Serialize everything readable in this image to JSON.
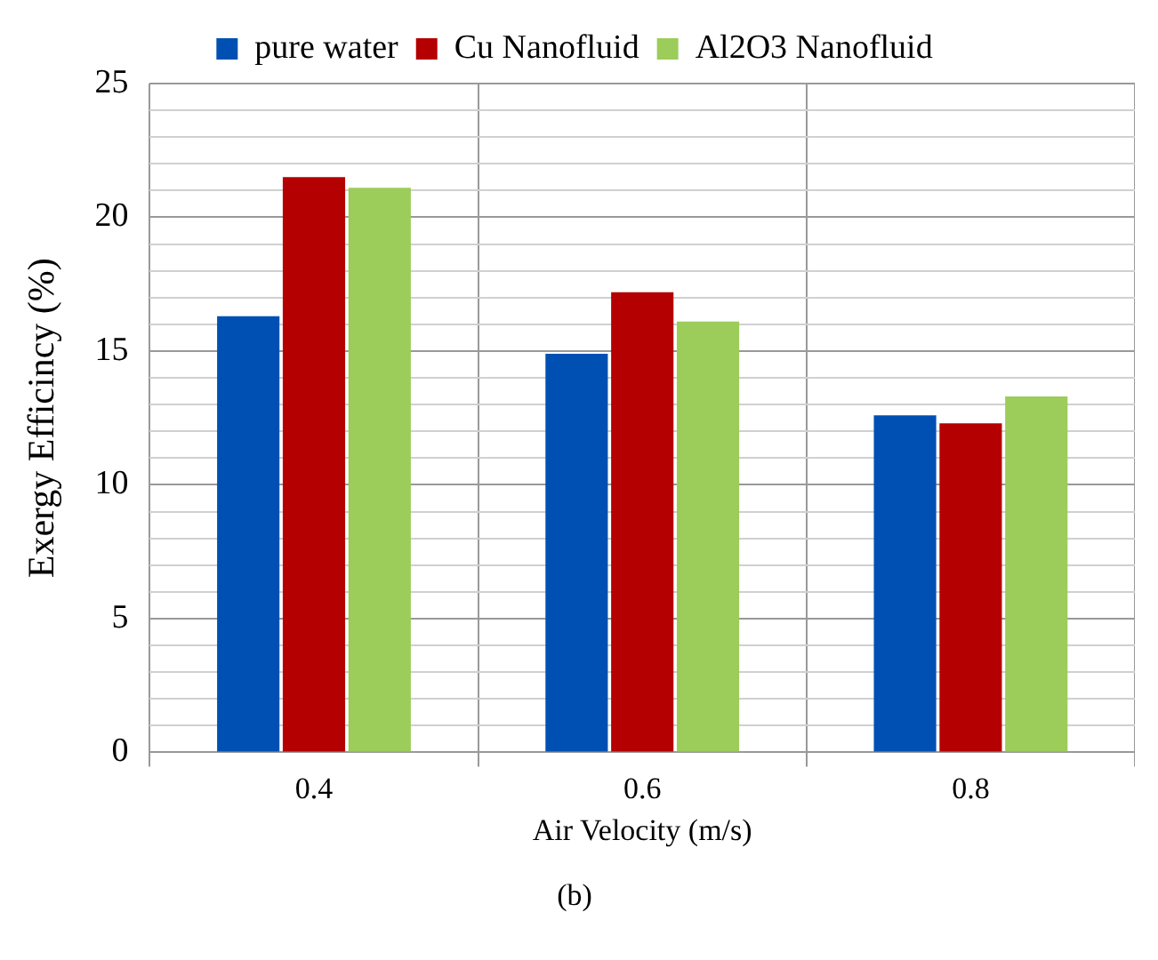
{
  "chart_data": {
    "type": "bar",
    "xlabel": "Air Velocity (m/s)",
    "ylabel": "Exergy Efficincy (%)",
    "categories": [
      "0.4",
      "0.6",
      "0.8"
    ],
    "series": [
      {
        "name": "pure water",
        "color": "#0050b4",
        "values": [
          16.3,
          14.9,
          12.6
        ]
      },
      {
        "name": "Cu Nanofluid",
        "color": "#b40000",
        "values": [
          21.5,
          17.2,
          12.3
        ]
      },
      {
        "name": "Al2O3 Nanofluid",
        "color": "#9ccc5a",
        "values": [
          21.1,
          16.1,
          13.3
        ]
      }
    ],
    "ylim": [
      0,
      25
    ],
    "yticks": [
      0,
      {
        "value": 1,
        "label": null
      },
      {
        "value": 2,
        "label": null
      },
      {
        "value": 3,
        "label": null
      },
      {
        "value": 4,
        "label": null
      },
      5,
      {
        "value": 6,
        "label": null
      },
      {
        "value": 7,
        "label": null
      },
      {
        "value": 8,
        "label": null
      },
      {
        "value": 9,
        "label": null
      },
      10,
      {
        "value": 11,
        "label": null
      },
      {
        "value": 12,
        "label": null
      },
      {
        "value": 13,
        "label": null
      },
      {
        "value": 14,
        "label": null
      },
      15,
      {
        "value": 16,
        "label": null
      },
      {
        "value": 17,
        "label": null
      },
      {
        "value": 18,
        "label": null
      },
      {
        "value": 19,
        "label": null
      },
      20,
      {
        "value": 21,
        "label": null
      },
      {
        "value": 22,
        "label": null
      },
      {
        "value": 23,
        "label": null
      },
      {
        "value": 24,
        "label": null
      },
      25
    ],
    "grid": true,
    "legend": "top",
    "annotations": [
      "(b)"
    ]
  }
}
